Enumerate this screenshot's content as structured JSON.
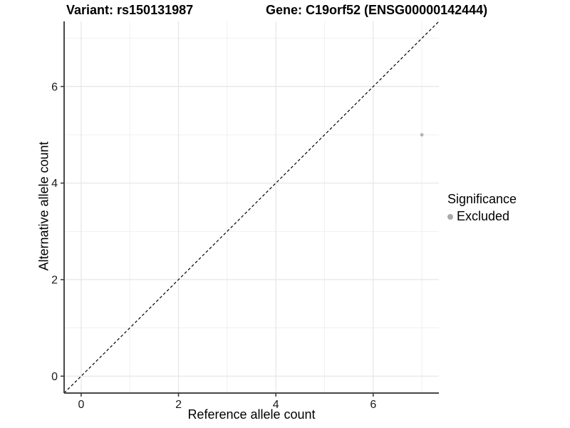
{
  "titles": {
    "variant": "Variant: rs150131987",
    "gene": "Gene: C19orf52 (ENSG00000142444)"
  },
  "legend": {
    "title": "Significance",
    "items": [
      {
        "label": "Excluded",
        "color": "#a9a9a9"
      }
    ]
  },
  "chart_data": {
    "type": "scatter",
    "title": "Variant: rs150131987  Gene: C19orf52 (ENSG00000142444)",
    "xlabel": "Reference allele count",
    "ylabel": "Alternative allele count",
    "xlim": [
      -0.35,
      7.35
    ],
    "ylim": [
      -0.35,
      7.35
    ],
    "xticks": [
      0,
      2,
      4,
      6
    ],
    "yticks": [
      0,
      2,
      4,
      6
    ],
    "xminor": [
      1,
      3,
      5,
      7
    ],
    "yminor": [
      1,
      3,
      5,
      7
    ],
    "grid": true,
    "legend_position": "right",
    "series": [
      {
        "name": "Excluded",
        "points": [
          {
            "x": 7,
            "y": 5
          }
        ]
      }
    ],
    "abline": {
      "slope": 1,
      "intercept": 0,
      "linetype": "dashed",
      "color": "#000000"
    },
    "colors": {
      "point": "#b3b3b3",
      "legend_dot": "#a9a9a9",
      "grid_major": "#e5e5e5",
      "grid_minor": "#f0f0f0",
      "axis_line": "#474747",
      "tick_mark": "#333333",
      "tick_text": "#1a1a1a"
    }
  }
}
